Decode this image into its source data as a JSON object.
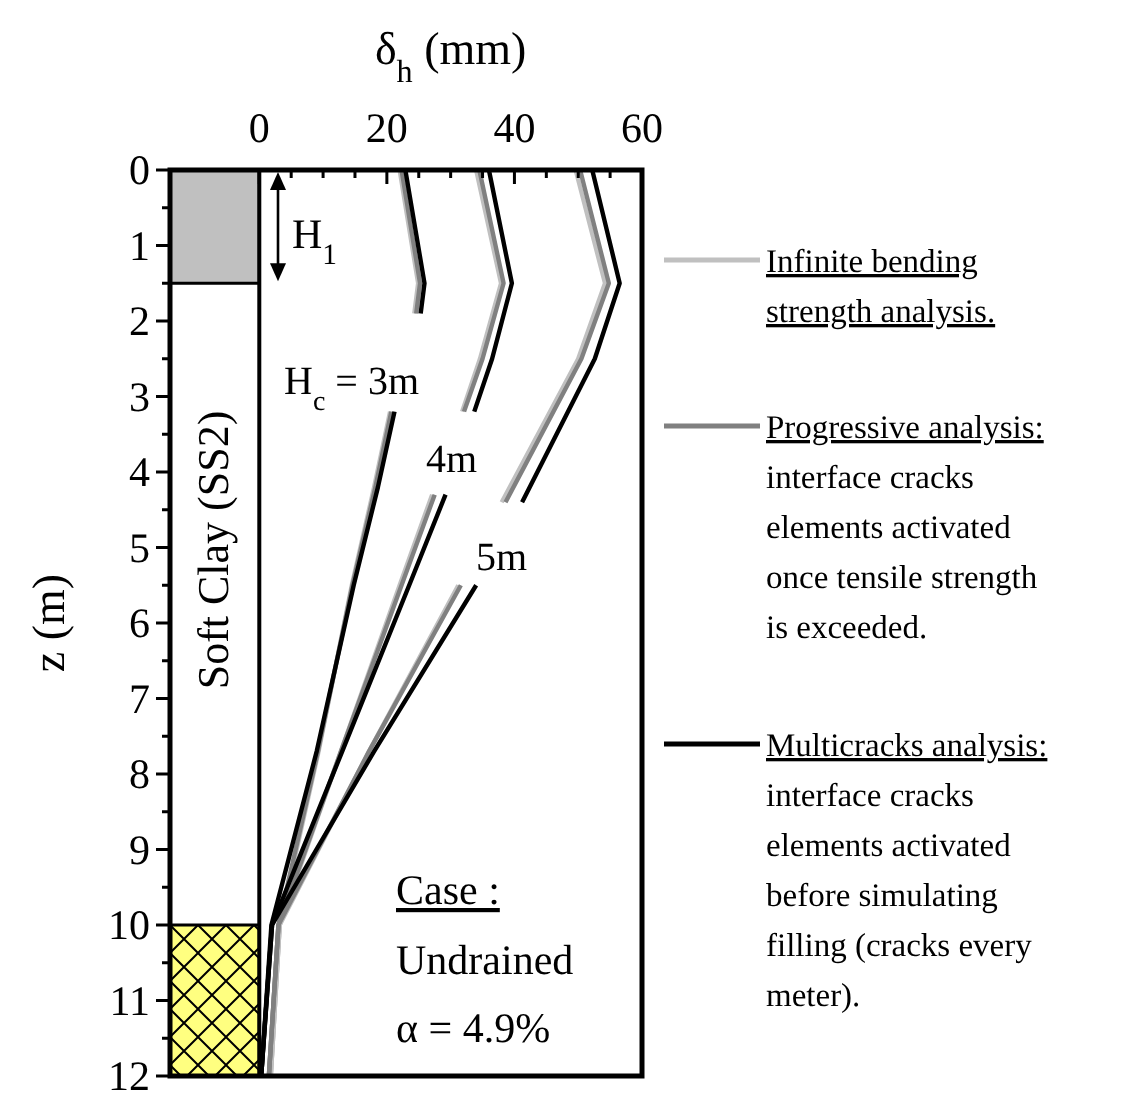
{
  "chart_data": {
    "type": "line",
    "xlabel": "δ$_{h}$ (mm)",
    "ylabel": "z (m)",
    "xlim": [
      -14,
      60
    ],
    "xticks": [
      0,
      {
        "value": 5,
        "label": null
      },
      {
        "value": 10,
        "label": null
      },
      {
        "value": 15,
        "label": null
      },
      20,
      {
        "value": 25,
        "label": null
      },
      {
        "value": 30,
        "label": null
      },
      {
        "value": 35,
        "label": null
      },
      40,
      {
        "value": 45,
        "label": null
      },
      {
        "value": 50,
        "label": null
      },
      {
        "value": 55,
        "label": null
      },
      60
    ],
    "ylim": [
      12,
      0
    ],
    "yticks": [
      0,
      {
        "value": 0.5,
        "label": null
      },
      1,
      {
        "value": 1.5,
        "label": null
      },
      2,
      {
        "value": 2.5,
        "label": null
      },
      3,
      {
        "value": 3.5,
        "label": null
      },
      4,
      {
        "value": 4.5,
        "label": null
      },
      5,
      {
        "value": 5.5,
        "label": null
      },
      6,
      {
        "value": 6.5,
        "label": null
      },
      7,
      {
        "value": 7.5,
        "label": null
      },
      8,
      {
        "value": 8.5,
        "label": null
      },
      9,
      {
        "value": 9.5,
        "label": null
      },
      10,
      {
        "value": 10.5,
        "label": null
      },
      11,
      {
        "value": 11.5,
        "label": null
      },
      12
    ],
    "grid": false,
    "legend": "right",
    "line_style": "solid",
    "series": [
      {
        "name": "Infinite bending strength analysis.",
        "color": "#c0c0c0",
        "x": [
          22.0,
          24.9,
          24.3,
          null,
          20.5,
          18.0,
          14.5,
          9.3,
          3.2,
          1.8
        ],
        "values": [
          0,
          1.5,
          1.9,
          null,
          3.2,
          4.2,
          5.5,
          7.7,
          10,
          12
        ]
      },
      {
        "color": "#c0c0c0",
        "x": [
          34.0,
          37.9,
          34.6,
          31.8,
          null,
          27.1,
          22.0,
          12.8,
          3.2,
          1.8
        ],
        "values": [
          0,
          1.5,
          2.5,
          3.2,
          null,
          4.3,
          5.5,
          7.7,
          10,
          12
        ]
      },
      {
        "color": "#c0c0c0",
        "x": [
          49.6,
          54.2,
          50.0,
          38.0,
          null,
          31.2,
          17.2,
          3.2,
          1.8
        ],
        "values": [
          0,
          1.5,
          2.5,
          4.4,
          null,
          5.5,
          7.7,
          10,
          12
        ]
      },
      {
        "name": "Progressive analysis:",
        "color": "#808080",
        "x": [
          22.3,
          25.2,
          24.6,
          null,
          20.7,
          18.2,
          14.6,
          9.2,
          3.0,
          1.5
        ],
        "values": [
          0,
          1.5,
          1.9,
          null,
          3.2,
          4.2,
          5.5,
          7.7,
          10,
          12
        ]
      },
      {
        "color": "#808080",
        "x": [
          34.5,
          38.3,
          35.0,
          32.1,
          null,
          27.5,
          22.3,
          12.8,
          3.0,
          1.5
        ],
        "values": [
          0,
          1.5,
          2.5,
          3.2,
          null,
          4.3,
          5.5,
          7.7,
          10,
          12
        ]
      },
      {
        "color": "#808080",
        "x": [
          50.3,
          54.8,
          50.5,
          38.6,
          null,
          31.6,
          17.2,
          3.0,
          1.5
        ],
        "values": [
          0,
          1.5,
          2.5,
          4.4,
          null,
          5.5,
          7.7,
          10,
          12
        ]
      },
      {
        "name": "Multicracks analysis:",
        "color": "#000000",
        "x": [
          22.9,
          25.9,
          25.3,
          null,
          21.2,
          18.6,
          14.8,
          9.0,
          1.9,
          0.3
        ],
        "values": [
          0,
          1.5,
          1.9,
          null,
          3.2,
          4.2,
          5.5,
          7.7,
          10,
          12
        ]
      },
      {
        "color": "#000000",
        "x": [
          36.0,
          39.6,
          36.5,
          33.7,
          null,
          29.2,
          23.5,
          13.0,
          2.0,
          0.3
        ],
        "values": [
          0,
          1.5,
          2.5,
          3.2,
          null,
          4.3,
          5.5,
          7.7,
          10,
          12
        ]
      },
      {
        "color": "#000000",
        "x": [
          52.2,
          56.5,
          52.6,
          41.2,
          null,
          34.0,
          18.0,
          2.0,
          0.3
        ],
        "values": [
          0,
          1.5,
          2.5,
          4.4,
          null,
          5.5,
          7.7,
          10,
          12
        ]
      }
    ],
    "ref_lines": [
      {
        "axis": "x",
        "value": 0,
        "color": "#000000"
      }
    ],
    "bands": [
      {
        "axis": "y",
        "from": 0,
        "to": 1.5,
        "color": "#c0c0c0"
      },
      {
        "axis": "y",
        "from": 10,
        "to": 12,
        "color": "#ffff80"
      }
    ],
    "annotations": [
      "Soft Clay (SS2)",
      "H$_{1}$",
      "H$_{c}$ = 3m",
      "4m",
      "5m",
      "Case :",
      "Undrained",
      "α = 4.9%",
      "interface cracks elements activated once tensile strength is exceeded.",
      "interface cracks elements activated before simulating filling (cracks every meter)."
    ]
  }
}
